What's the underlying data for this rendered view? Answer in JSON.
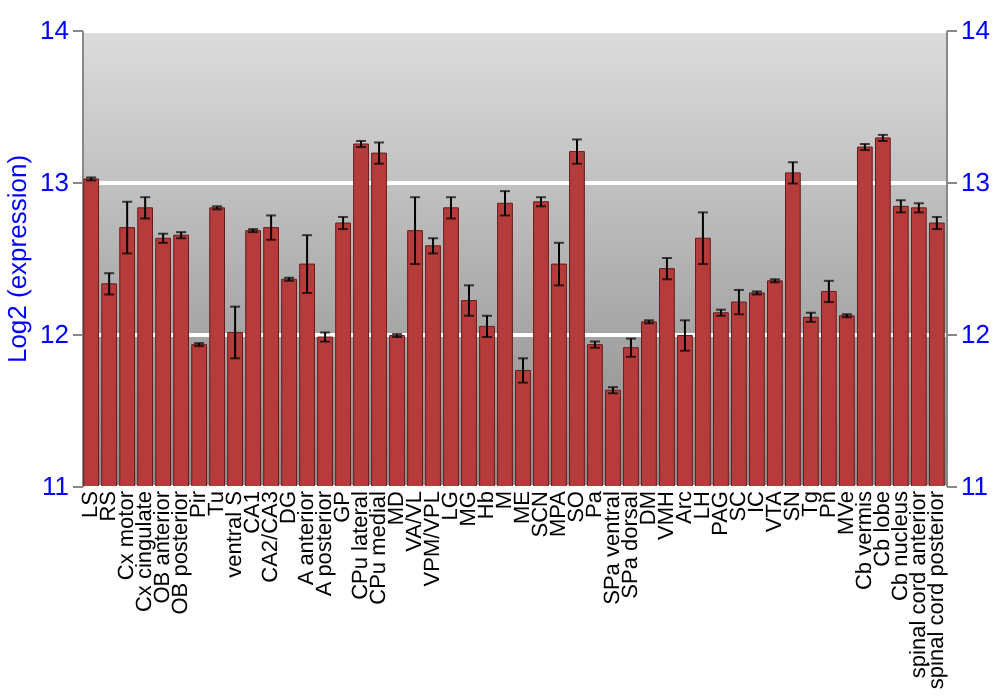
{
  "chart_data": {
    "type": "bar",
    "ylabel": "Log2 (expression)",
    "categories": [
      "LS",
      "RS",
      "Cx motor",
      "Cx cingulate",
      "OB anterior",
      "OB posterior",
      "Pir",
      "Tu",
      "ventral S",
      "CA1",
      "CA2/CA3",
      "DG",
      "A anterior",
      "A posterior",
      "GP",
      "CPu lateral",
      "CPu medial",
      "MD",
      "VA/VL",
      "VPM/VPL",
      "LG",
      "MG",
      "Hb",
      "M",
      "ME",
      "SCN",
      "MPA",
      "SO",
      "Pa",
      "SPa ventral",
      "SPa dorsal",
      "DM",
      "VMH",
      "Arc",
      "LH",
      "PAG",
      "SC",
      "IC",
      "VTA",
      "SN",
      "Tg",
      "Pn",
      "MVe",
      "Cb vermis",
      "Cb lobe",
      "Cb nucleus",
      "spinal cord anterior",
      "spinal cord posterior"
    ],
    "values": [
      13.02,
      12.33,
      12.7,
      12.83,
      12.63,
      12.65,
      11.93,
      12.83,
      12.01,
      12.68,
      12.7,
      12.36,
      12.46,
      11.98,
      12.73,
      13.25,
      13.19,
      11.99,
      12.68,
      12.58,
      12.83,
      12.22,
      12.05,
      12.86,
      11.76,
      12.87,
      12.46,
      13.2,
      11.93,
      11.63,
      11.91,
      12.08,
      12.43,
      11.99,
      12.63,
      12.14,
      12.21,
      12.27,
      12.35,
      13.06,
      12.11,
      12.28,
      12.12,
      13.23,
      13.29,
      12.84,
      12.83,
      12.73
    ],
    "errors": [
      0.01,
      0.07,
      0.17,
      0.07,
      0.03,
      0.02,
      0.01,
      0.01,
      0.17,
      0.01,
      0.08,
      0.01,
      0.19,
      0.03,
      0.04,
      0.02,
      0.07,
      0.01,
      0.22,
      0.05,
      0.07,
      0.1,
      0.07,
      0.08,
      0.08,
      0.03,
      0.14,
      0.08,
      0.02,
      0.02,
      0.06,
      0.01,
      0.07,
      0.1,
      0.17,
      0.02,
      0.08,
      0.01,
      0.01,
      0.07,
      0.03,
      0.07,
      0.01,
      0.02,
      0.02,
      0.04,
      0.03,
      0.04
    ],
    "color": "#b63c3c",
    "ylim": [
      11,
      14
    ],
    "yticks": [
      11,
      12,
      13,
      14
    ],
    "y2lim": [
      11,
      14
    ],
    "y2ticks": [
      11,
      12,
      13,
      14
    ],
    "grid": "y"
  }
}
